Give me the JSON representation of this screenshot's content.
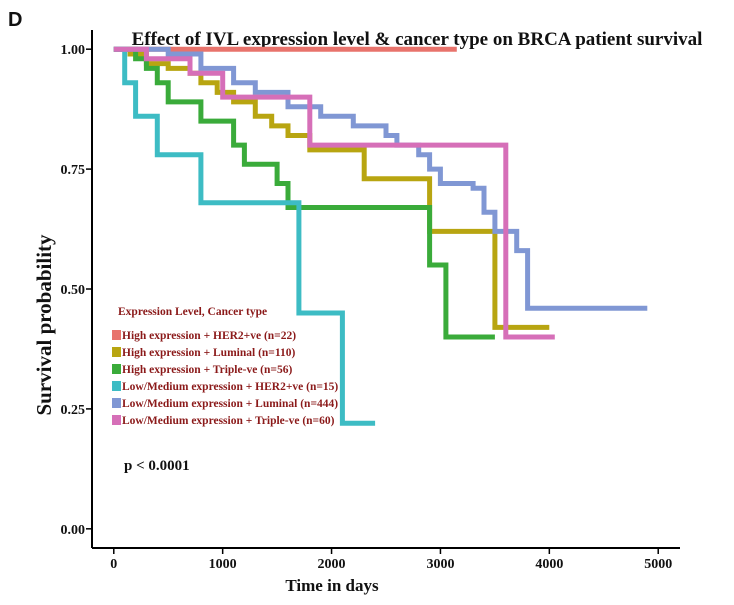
{
  "panel_label": "D",
  "chart_data": {
    "type": "line",
    "subtype": "kaplan-meier step",
    "title": "Effect of IVL expression level & cancer type on BRCA patient survival",
    "xlabel": "Time in days",
    "ylabel": "Survival probability",
    "xlim": [
      -200,
      5200
    ],
    "ylim": [
      -0.04,
      1.04
    ],
    "x_ticks": [
      0,
      1000,
      2000,
      3000,
      4000,
      5000
    ],
    "x_tick_labels": [
      "0",
      "1000",
      "2000",
      "3000",
      "4000",
      "5000"
    ],
    "y_ticks": [
      0,
      0.25,
      0.5,
      0.75,
      1.0
    ],
    "y_tick_labels": [
      "0.00",
      "0.25",
      "0.50",
      "0.75",
      "1.00"
    ],
    "legend": {
      "title": "Expression Level, Cancer type",
      "position": "center-left"
    },
    "annotation": "p < 0.0001",
    "series": [
      {
        "name": "High expression + HER2+ve (n=22)",
        "color": "#e8736c",
        "x": [
          0,
          3150
        ],
        "y": [
          1.0,
          1.0
        ]
      },
      {
        "name": "High expression + Luminal (n=110)",
        "color": "#b8a511",
        "x": [
          0,
          150,
          300,
          500,
          700,
          800,
          950,
          1100,
          1300,
          1450,
          1600,
          1800,
          2200,
          2300,
          2700,
          2900,
          3450,
          3500,
          4000
        ],
        "y": [
          1.0,
          0.99,
          0.97,
          0.96,
          0.95,
          0.93,
          0.91,
          0.89,
          0.86,
          0.84,
          0.82,
          0.79,
          0.79,
          0.73,
          0.73,
          0.62,
          0.62,
          0.42,
          0.42
        ]
      },
      {
        "name": "High expression + Triple-ve (n=56)",
        "color": "#3aab3a",
        "x": [
          0,
          200,
          300,
          400,
          500,
          800,
          1100,
          1200,
          1500,
          1600,
          1800,
          2900,
          3050,
          3350,
          3500
        ],
        "y": [
          1.0,
          0.98,
          0.96,
          0.93,
          0.89,
          0.85,
          0.8,
          0.76,
          0.72,
          0.67,
          0.67,
          0.55,
          0.4,
          0.4,
          0.4
        ]
      },
      {
        "name": "Low/Medium expression + HER2+ve (n=15)",
        "color": "#3dbcc4",
        "x": [
          0,
          100,
          200,
          400,
          800,
          1200,
          1700,
          2100,
          2400
        ],
        "y": [
          1.0,
          0.93,
          0.86,
          0.78,
          0.68,
          0.68,
          0.45,
          0.22,
          0.22
        ]
      },
      {
        "name": "Low/Medium expression + Luminal (n=444)",
        "color": "#8097d4",
        "x": [
          0,
          500,
          800,
          1100,
          1300,
          1600,
          1900,
          2200,
          2500,
          2600,
          2800,
          2900,
          3000,
          3300,
          3400,
          3500,
          3700,
          3800,
          4900
        ],
        "y": [
          1.0,
          0.99,
          0.96,
          0.93,
          0.91,
          0.88,
          0.86,
          0.84,
          0.82,
          0.8,
          0.78,
          0.75,
          0.72,
          0.71,
          0.66,
          0.62,
          0.58,
          0.46,
          0.46
        ]
      },
      {
        "name": "Low/Medium expression + Triple-ve (n=60)",
        "color": "#d66fb8",
        "x": [
          0,
          300,
          700,
          1000,
          1200,
          1800,
          3500,
          3600,
          4050
        ],
        "y": [
          1.0,
          0.98,
          0.95,
          0.9,
          0.9,
          0.8,
          0.8,
          0.4,
          0.4
        ]
      }
    ]
  }
}
